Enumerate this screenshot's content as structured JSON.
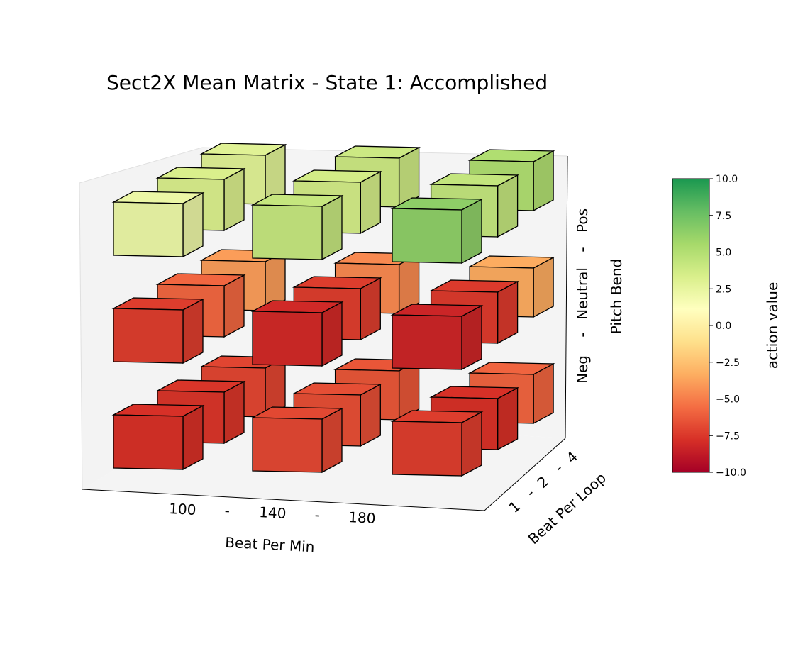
{
  "chart_data": {
    "type": "3d-bar",
    "title": "Sect2X Mean Matrix - State 1: Accomplished",
    "x_axis": {
      "label": "Beat Per Min",
      "ticks": [
        "100",
        "-",
        "140",
        "-",
        "180"
      ],
      "categories": [
        "100",
        "140",
        "180"
      ]
    },
    "y_axis": {
      "label": "Beat Per Loop",
      "ticks": [
        "1",
        "-",
        "2",
        "-",
        "4"
      ],
      "categories": [
        "1",
        "2",
        "4"
      ]
    },
    "z_axis": {
      "label": "Pitch Bend",
      "ticks": [
        "Neg",
        "-",
        "Neutral",
        "-",
        "Pos"
      ],
      "categories": [
        "Neg",
        "Neutral",
        "Pos"
      ]
    },
    "colorbar": {
      "label": "action value",
      "range": [
        -10,
        10
      ],
      "ticks": [
        "10.0",
        "7.5",
        "5.0",
        "2.5",
        "0.0",
        "−2.5",
        "−5.0",
        "−7.5",
        "−10.0"
      ],
      "stops": [
        "#1a9850",
        "#66bd63",
        "#a6d96a",
        "#d9ef8b",
        "#ffffbf",
        "#fee08b",
        "#fdae61",
        "#f46d43",
        "#d73027",
        "#a50026"
      ]
    },
    "grid": false,
    "values": [
      {
        "bpm": "100",
        "bpl": "1",
        "pitch": "Neg",
        "value": -7.8
      },
      {
        "bpm": "100",
        "bpl": "2",
        "pitch": "Neg",
        "value": -7.6
      },
      {
        "bpm": "100",
        "bpl": "4",
        "pitch": "Neg",
        "value": -7.0
      },
      {
        "bpm": "140",
        "bpl": "1",
        "pitch": "Neg",
        "value": -6.9
      },
      {
        "bpm": "140",
        "bpl": "2",
        "pitch": "Neg",
        "value": -6.7
      },
      {
        "bpm": "140",
        "bpl": "4",
        "pitch": "Neg",
        "value": -6.4
      },
      {
        "bpm": "180",
        "bpl": "1",
        "pitch": "Neg",
        "value": -7.3
      },
      {
        "bpm": "180",
        "bpl": "2",
        "pitch": "Neg",
        "value": -7.8
      },
      {
        "bpm": "180",
        "bpl": "4",
        "pitch": "Neg",
        "value": -5.9
      },
      {
        "bpm": "100",
        "bpl": "1",
        "pitch": "Neutral",
        "value": -7.3
      },
      {
        "bpm": "100",
        "bpl": "2",
        "pitch": "Neutral",
        "value": -5.8
      },
      {
        "bpm": "100",
        "bpl": "4",
        "pitch": "Neutral",
        "value": -3.9
      },
      {
        "bpm": "140",
        "bpl": "1",
        "pitch": "Neutral",
        "value": -8.1
      },
      {
        "bpm": "140",
        "bpl": "2",
        "pitch": "Neutral",
        "value": -7.3
      },
      {
        "bpm": "140",
        "bpl": "4",
        "pitch": "Neutral",
        "value": -4.6
      },
      {
        "bpm": "180",
        "bpl": "1",
        "pitch": "Neutral",
        "value": -8.3
      },
      {
        "bpm": "180",
        "bpl": "2",
        "pitch": "Neutral",
        "value": -7.4
      },
      {
        "bpm": "180",
        "bpl": "4",
        "pitch": "Neutral",
        "value": -3.4
      },
      {
        "bpm": "100",
        "bpl": "1",
        "pitch": "Pos",
        "value": 2.2
      },
      {
        "bpm": "100",
        "bpl": "2",
        "pitch": "Pos",
        "value": 3.3
      },
      {
        "bpm": "100",
        "bpl": "4",
        "pitch": "Pos",
        "value": 2.9
      },
      {
        "bpm": "140",
        "bpl": "1",
        "pitch": "Pos",
        "value": 4.2
      },
      {
        "bpm": "140",
        "bpl": "2",
        "pitch": "Pos",
        "value": 3.6
      },
      {
        "bpm": "140",
        "bpl": "4",
        "pitch": "Pos",
        "value": 3.9
      },
      {
        "bpm": "180",
        "bpl": "1",
        "pitch": "Pos",
        "value": 6.4
      },
      {
        "bpm": "180",
        "bpl": "2",
        "pitch": "Pos",
        "value": 4.3
      },
      {
        "bpm": "180",
        "bpl": "4",
        "pitch": "Pos",
        "value": 5.1
      }
    ]
  }
}
